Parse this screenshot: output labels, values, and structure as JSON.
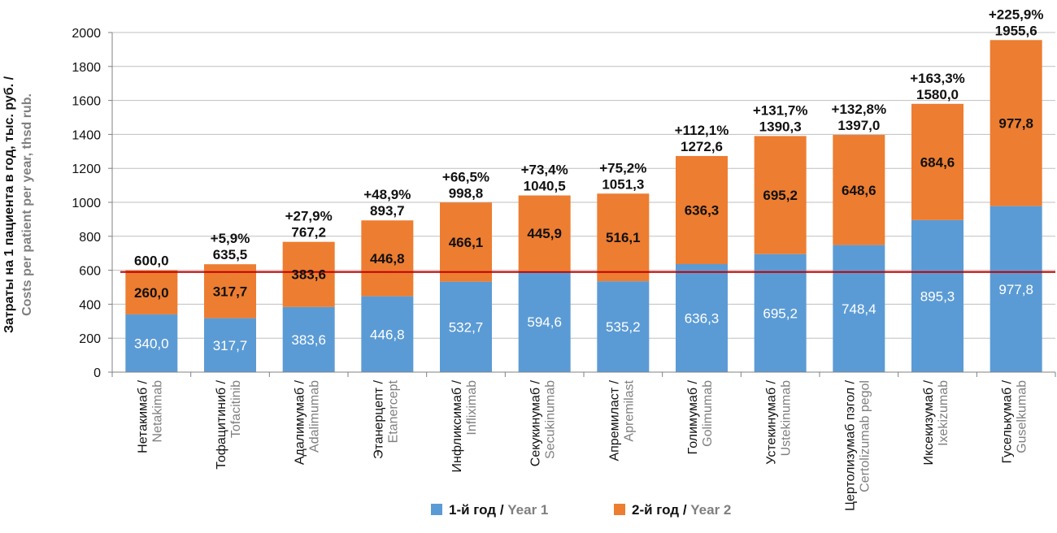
{
  "chart_data": {
    "type": "bar",
    "stacked": true,
    "ylabel_ru": "Затраты на 1 пациента в год, тыс. руб. /",
    "ylabel_en": "Costs per patient per year, thsd rub.",
    "ylim": [
      0,
      2000
    ],
    "yticks": [
      "0",
      "200",
      "400",
      "600",
      "800",
      "1000",
      "1200",
      "1400",
      "1600",
      "1800",
      "2000"
    ],
    "reference_line": 590,
    "categories_ru": [
      "Нетакимаб /",
      "Тофацитиниб /",
      "Адалимумаб /",
      "Этанерцепт /",
      "Инфликсимаб /",
      "Секукинумаб /",
      "Апремиласт /",
      "Голимумаб /",
      "Устекинумаб /",
      "Цертолизумаб пэгол /",
      "Иксекизумаб /",
      "Гуселькумаб /"
    ],
    "categories_en": [
      "Netakimab",
      "Tofacitinib",
      "Adalimumab",
      "Etanercept",
      "Infliximab",
      "Secukinumab",
      "Apremilast",
      "Golimumab",
      "Ustekinumab",
      "Certolizumab pegol",
      "Ixekizumab",
      "Guselkumab"
    ],
    "series": [
      {
        "name_ru": "1-й год",
        "name_en": "Year 1",
        "color": "#5b9bd5",
        "values": [
          340.0,
          317.7,
          383.6,
          446.8,
          532.7,
          594.6,
          535.2,
          636.3,
          695.2,
          748.4,
          895.3,
          977.8
        ],
        "labels": [
          "340,0",
          "317,7",
          "383,6",
          "446,8",
          "532,7",
          "594,6",
          "535,2",
          "636,3",
          "695,2",
          "748,4",
          "895,3",
          "977,8"
        ]
      },
      {
        "name_ru": "2-й год",
        "name_en": "Year 2",
        "color": "#ed7d31",
        "values": [
          260.0,
          317.7,
          383.6,
          446.8,
          466.1,
          445.9,
          516.1,
          636.3,
          695.2,
          648.6,
          684.6,
          977.8
        ],
        "labels": [
          "260,0",
          "317,7",
          "383,6",
          "446,8",
          "466,1",
          "445,9",
          "516,1",
          "636,3",
          "695,2",
          "648,6",
          "684,6",
          "977,8"
        ]
      }
    ],
    "totals": [
      600.0,
      635.5,
      767.2,
      893.7,
      998.8,
      1040.5,
      1051.3,
      1272.6,
      1390.3,
      1397.0,
      1580.0,
      1955.6
    ],
    "total_labels": [
      "600,0",
      "635,5",
      "767,2",
      "893,7",
      "998,8",
      "1040,5",
      "1051,3",
      "1272,6",
      "1390,3",
      "1397,0",
      "1580,0",
      "1955,6"
    ],
    "pct_labels": [
      "",
      "+5,9%",
      "+27,9%",
      "+48,9%",
      "+66,5%",
      "+73,4%",
      "+75,2%",
      "+112,1%",
      "+131,7%",
      "+132,8%",
      "+163,3%",
      "+225,9%"
    ],
    "legend": {
      "sep": " / "
    },
    "colors": {
      "year1": "#5b9bd5",
      "year2": "#ed7d31",
      "reference_line": "#c00000",
      "en_text": "#7f7f7f"
    }
  }
}
